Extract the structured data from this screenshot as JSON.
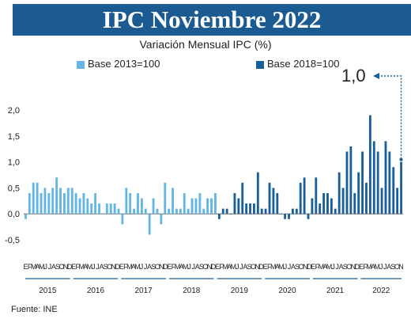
{
  "header": {
    "title": "IPC Noviembre 2022",
    "subtitle": "Variación Mensual IPC (%)"
  },
  "legend": [
    {
      "label": "Base 2013=100",
      "color": "#62b5e5"
    },
    {
      "label": "Base 2018=100",
      "color": "#1b5f99"
    }
  ],
  "annotation": {
    "text": "1,0",
    "color": "#1b5f99"
  },
  "source": "Fuente: INE",
  "chart_data": {
    "type": "bar",
    "title": "IPC Noviembre 2022",
    "subtitle": "Variación Mensual IPC (%)",
    "ylabel": "",
    "xlabel": "",
    "ylim": [
      -0.5,
      2.0
    ],
    "yticks": [
      "2,0",
      "1,5",
      "1,0",
      "0,5",
      "0,0",
      "-0,5"
    ],
    "ytick_values": [
      2.0,
      1.5,
      1.0,
      0.5,
      0.0,
      -0.5
    ],
    "grid": false,
    "legend_position": "top",
    "month_letters": [
      "E",
      "F",
      "M",
      "A",
      "M",
      "J",
      "J",
      "A",
      "S",
      "O",
      "N",
      "D"
    ],
    "series": [
      {
        "name": "Base 2013=100",
        "color": "#62b5e5",
        "years": [
          {
            "year": "2015",
            "values": [
              -0.1,
              0.4,
              0.6,
              0.6,
              0.4,
              0.5,
              0.4,
              0.5,
              0.7,
              0.5,
              0.4,
              0.5
            ]
          },
          {
            "year": "2016",
            "values": [
              0.5,
              0.4,
              0.3,
              0.4,
              0.3,
              0.2,
              0.4,
              0.2,
              0.0,
              0.2,
              0.2,
              0.2
            ]
          },
          {
            "year": "2017",
            "values": [
              0.1,
              -0.2,
              0.5,
              0.4,
              0.1,
              0.4,
              0.3,
              0.1,
              -0.4,
              0.3,
              0.1,
              -0.2
            ]
          },
          {
            "year": "2018",
            "values": [
              0.6,
              0.1,
              0.5,
              0.1,
              0.1,
              0.4,
              0.1,
              0.3,
              0.3,
              0.4,
              0.1,
              0.3
            ]
          },
          {
            "year": "2018b",
            "values": [
              0.3,
              0.4
            ]
          }
        ]
      },
      {
        "name": "Base 2018=100",
        "color": "#1b5f99",
        "years": [
          {
            "year": "2018",
            "values": [
              -0.1,
              0.1
            ]
          },
          {
            "year": "2019",
            "values": [
              0.1,
              0.0,
              0.4,
              0.3,
              0.6,
              0.2,
              0.2,
              0.2,
              0.8,
              0.1,
              0.1,
              0.6
            ]
          },
          {
            "year": "2020",
            "values": [
              0.5,
              0.4,
              0.0,
              -0.1,
              -0.1,
              0.1,
              0.1,
              0.6,
              0.7,
              -0.1,
              0.3,
              0.7
            ]
          },
          {
            "year": "2021",
            "values": [
              0.2,
              0.4,
              0.4,
              0.3,
              0.1,
              0.8,
              0.5,
              1.2,
              1.3,
              0.4,
              0.8,
              1.2
            ]
          },
          {
            "year": "2022",
            "values": [
              0.6,
              1.9,
              1.4,
              1.2,
              0.5,
              1.4,
              1.2,
              0.9,
              0.5,
              1.0
            ]
          }
        ]
      }
    ],
    "x_year_labels": [
      "2015",
      "2016",
      "2017",
      "2018",
      "2019",
      "2020",
      "2021",
      "2022"
    ],
    "last_value": 1.0
  }
}
